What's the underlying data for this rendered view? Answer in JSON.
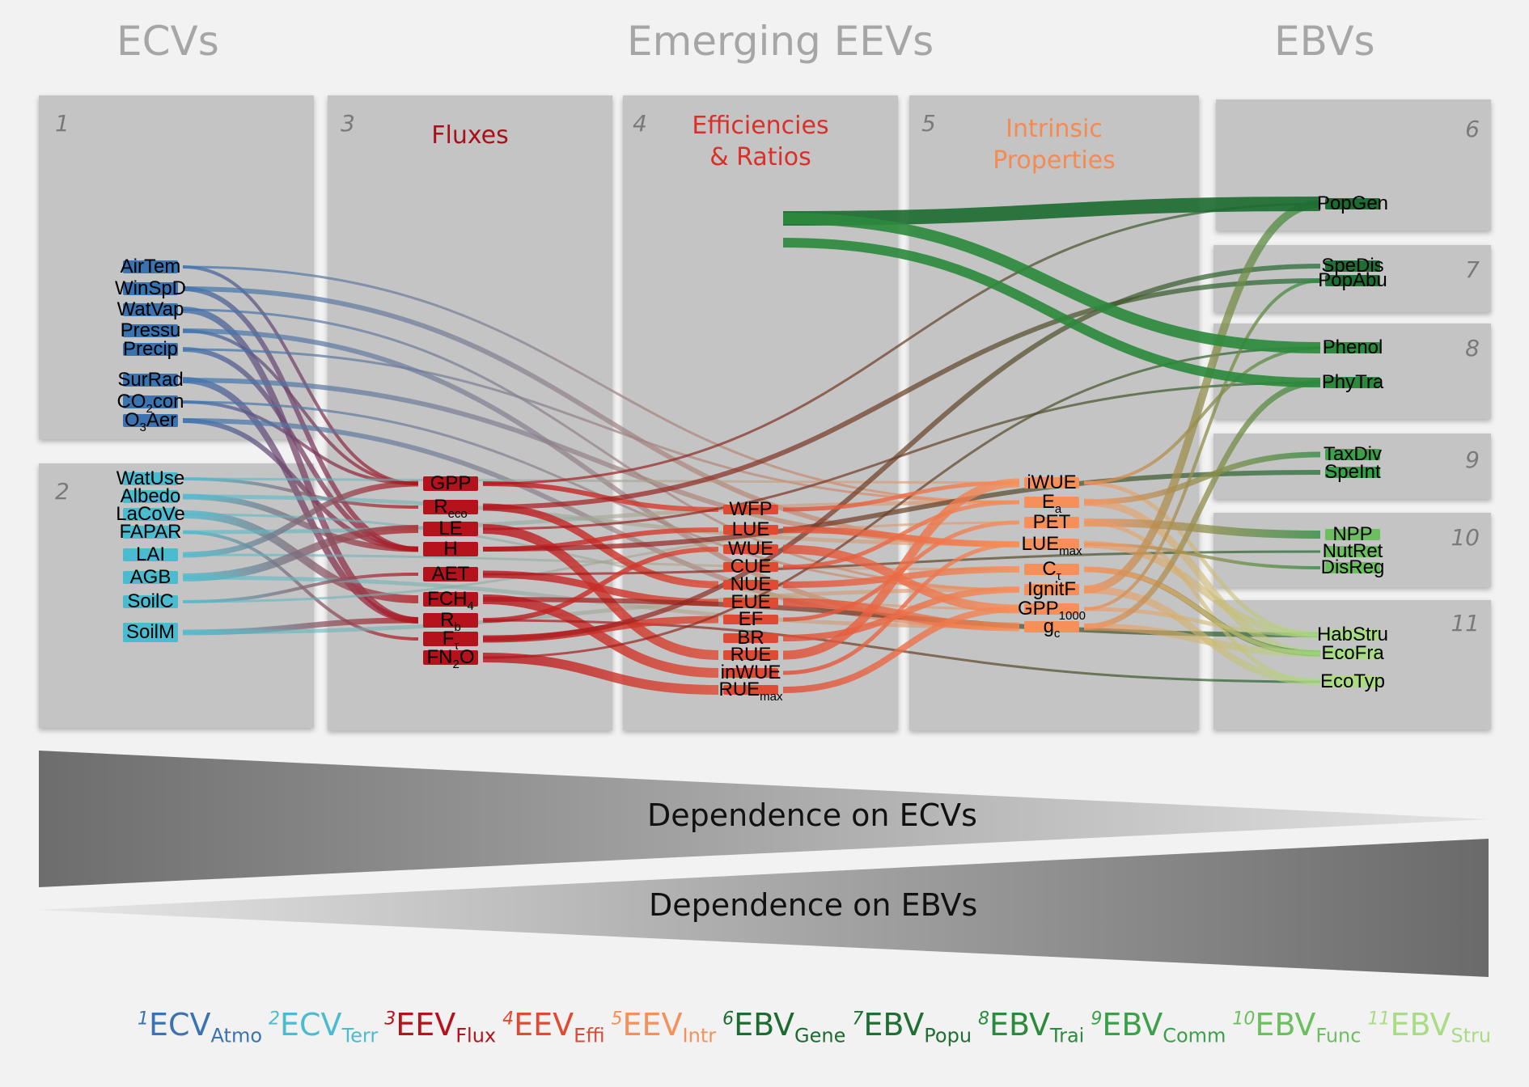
{
  "headers": {
    "left": "ECVs",
    "center": "Emerging EEVs",
    "right": "EBVs"
  },
  "panels": [
    {
      "num": "1",
      "title": ""
    },
    {
      "num": "2",
      "title": ""
    },
    {
      "num": "3",
      "title": "Fluxes"
    },
    {
      "num": "4",
      "title_line1": "Efficiencies",
      "title_line2": "& Ratios"
    },
    {
      "num": "5",
      "title_line1": "Intrinsic",
      "title_line2": "Properties"
    },
    {
      "num": "6"
    },
    {
      "num": "7"
    },
    {
      "num": "8"
    },
    {
      "num": "9"
    },
    {
      "num": "10"
    },
    {
      "num": "11"
    }
  ],
  "colors": {
    "ECV_Atmo": "#3a73b0",
    "ECV_Terr": "#4bbccf",
    "EEV_Flux": "#b5121b",
    "EEV_Effi": "#e04a33",
    "EEV_Intr": "#f6905a",
    "EBV_Gene": "#1c6b30",
    "EBV_Popu": "#1f6e33",
    "EBV_Trai": "#2b8a3b",
    "EBV_Comm": "#3aa04a",
    "EBV_Func": "#6cbf5f",
    "EBV_Stru": "#a9dc84"
  },
  "nodes": {
    "ecv_atmo": [
      "AirTem",
      "WinSpD",
      "WatVap",
      "Pressu",
      "Precip",
      "SurRad",
      "CO2con",
      "O3Aer"
    ],
    "ecv_terr": [
      "WatUse",
      "Albedo",
      "LaCoVe",
      "FAPAR",
      "LAI",
      "AGB",
      "SoilC",
      "SoilM"
    ],
    "eev_flux": [
      "GPP",
      "Reco",
      "LE",
      "H",
      "AET",
      "FCH4",
      "Rb",
      "Fτ",
      "FN2O"
    ],
    "eev_effi": [
      "WFP",
      "LUE",
      "WUE",
      "CUE",
      "NUE",
      "EUE",
      "EF",
      "BR",
      "RUE",
      "inWUE",
      "RUEmax"
    ],
    "eev_intr": [
      "iWUE",
      "Ea",
      "PET",
      "LUEmax",
      "Cτ",
      "IgnitF",
      "GPP1000",
      "gc"
    ],
    "ebv": [
      "PopGen",
      "SpeDis",
      "PopAbu",
      "Phenol",
      "PhyTra",
      "TaxDiv",
      "SpeInt",
      "NPP",
      "NutRet",
      "DisReg",
      "HabStru",
      "EcoFra",
      "EcoTyp"
    ]
  },
  "wedges": {
    "ecv": "Dependence on ECVs",
    "ebv": "Dependence on EBVs"
  },
  "legend": [
    {
      "sup": "1",
      "main": "ECV",
      "sub": "Atmo",
      "color": "#3a73b0"
    },
    {
      "sup": "2",
      "main": "ECV",
      "sub": "Terr",
      "color": "#4bbccf"
    },
    {
      "sup": "3",
      "main": "EEV",
      "sub": "Flux",
      "color": "#b5121b"
    },
    {
      "sup": "4",
      "main": "EEV",
      "sub": "Effi",
      "color": "#e04a33"
    },
    {
      "sup": "5",
      "main": "EEV",
      "sub": "Intr",
      "color": "#f6905a"
    },
    {
      "sup": "6",
      "main": "EBV",
      "sub": "Gene",
      "color": "#1c6b30"
    },
    {
      "sup": "7",
      "main": "EBV",
      "sub": "Popu",
      "color": "#1f6e33"
    },
    {
      "sup": "8",
      "main": "EBV",
      "sub": "Trai",
      "color": "#2b8a3b"
    },
    {
      "sup": "9",
      "main": "EBV",
      "sub": "Comm",
      "color": "#3aa04a"
    },
    {
      "sup": "10",
      "main": "EBV",
      "sub": "Func",
      "color": "#6cbf5f"
    },
    {
      "sup": "11",
      "main": "EBV",
      "sub": "Stru",
      "color": "#a9dc84"
    }
  ]
}
